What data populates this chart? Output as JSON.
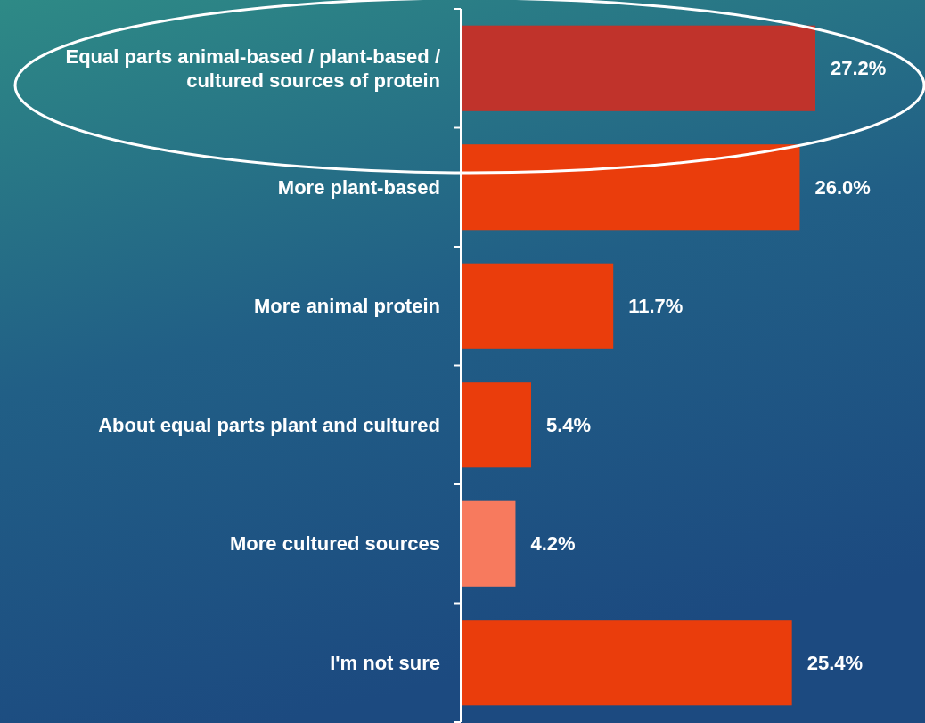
{
  "chart_data": {
    "type": "bar",
    "orientation": "horizontal",
    "categories": [
      "Equal parts animal-based / plant-based / cultured sources of protein",
      "More plant-based",
      "More animal protein",
      "About equal parts plant and cultured",
      "More cultured sources",
      "I'm not sure"
    ],
    "values": [
      27.2,
      26.0,
      11.7,
      5.4,
      4.2,
      25.4
    ],
    "colors": [
      "#c0332b",
      "#ea3d0c",
      "#ea3d0c",
      "#ea3d0c",
      "#f77a5e",
      "#ea3d0c"
    ],
    "value_labels": [
      "27.2%",
      "26.0%",
      "11.7%",
      "5.4%",
      "4.2%",
      "25.4%"
    ],
    "grid": false
  }
}
